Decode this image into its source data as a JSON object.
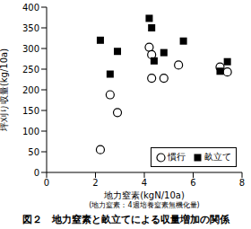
{
  "chart_data": {
    "type": "scatter",
    "caption": "図２　地力窒素と畝立てによる収量増加の関係",
    "x_label": "地力窒素(kgN/10a)",
    "x_label_note": "(地力窒素：4週培養窒素無機化量)",
    "y_label": "坪刈り収量(kg/10a)",
    "xlim": [
      0,
      8
    ],
    "xticks": [
      0,
      2,
      4,
      6,
      8
    ],
    "ylim": [
      0,
      400
    ],
    "yticks": [
      0,
      50,
      100,
      150,
      200,
      250,
      300,
      350,
      400
    ],
    "grid": false,
    "legend": "lower right",
    "series": [
      {
        "name": "慣行",
        "color": "#000000",
        "marker": "circle",
        "x": [
          2.2,
          2.6,
          2.9,
          4.2,
          4.3,
          4.3,
          4.8,
          5.4,
          7.1,
          7.4
        ],
        "values": [
          55,
          188,
          145,
          303,
          285,
          228,
          228,
          260,
          255,
          243
        ]
      },
      {
        "name": "畝立て",
        "color": "#000000",
        "marker": "square",
        "x": [
          2.2,
          2.6,
          2.9,
          4.2,
          4.3,
          4.4,
          4.8,
          5.6,
          7.1,
          7.4
        ],
        "values": [
          320,
          238,
          293,
          373,
          350,
          270,
          290,
          318,
          245,
          268
        ]
      }
    ]
  }
}
